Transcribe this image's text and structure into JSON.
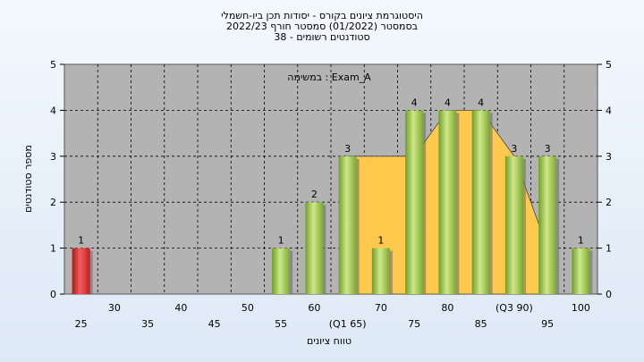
{
  "chart_data": {
    "type": "bar",
    "title_lines": [
      "היסטוגרמת ציונים בקורס - יסודות תכן ביו-חשמלי",
      "בסמסטר  (01/2022)  סמסטר חורף 2022/23",
      "סטודנטים רשומים - 38"
    ],
    "task_label": "במשימה : Exam_A",
    "xlabel": "טווח ציונים",
    "ylabel": "מספר סטודנטים",
    "ylim": [
      0,
      5
    ],
    "y_ticks": [
      "0",
      "1",
      "2",
      "3",
      "4",
      "5"
    ],
    "categories": [
      "25",
      "30",
      "35",
      "40",
      "45",
      "50",
      "55",
      "60",
      "65",
      "70",
      "75",
      "80",
      "85",
      "90",
      "95",
      "100"
    ],
    "x_tick_labels": [
      "25",
      "30",
      "35",
      "40",
      "45",
      "50",
      "55",
      "60",
      "(Q1 65)",
      "70",
      "75",
      "80",
      "85",
      "(Q3 90)",
      "95",
      "100"
    ],
    "values": [
      1,
      0,
      0,
      0,
      0,
      0,
      1,
      2,
      3,
      1,
      4,
      4,
      4,
      3,
      3,
      1
    ],
    "fail_threshold_category": "25",
    "distribution_curve": {
      "x": [
        65,
        70,
        75,
        80,
        85,
        90,
        95
      ],
      "y": [
        3,
        3,
        3,
        4,
        4,
        3,
        1
      ]
    },
    "grid": true,
    "colors": {
      "bar_pass": "#8bbf3a",
      "bar_fail": "#d62828",
      "curve_fill": "#ffc94d",
      "plot_bg": "#b3b3b3",
      "grid": "#000000"
    }
  }
}
